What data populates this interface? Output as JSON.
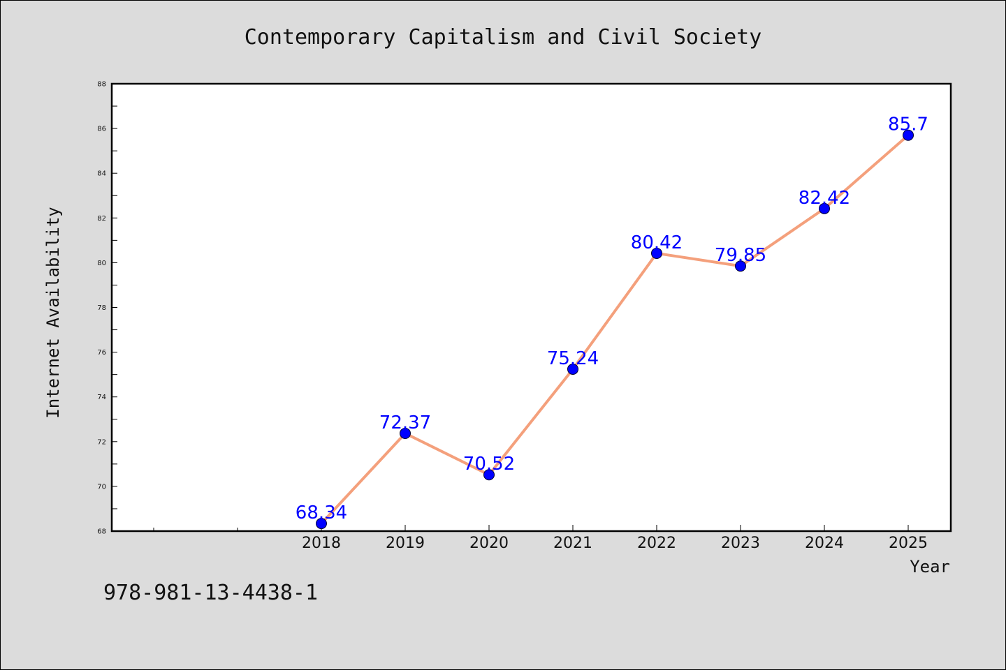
{
  "chart_data": {
    "type": "line",
    "title": "Contemporary Capitalism and Civil Society",
    "xlabel": "Year",
    "ylabel": "Internet Availability",
    "categories": [
      "2018",
      "2019",
      "2020",
      "2021",
      "2022",
      "2023",
      "2024",
      "2025"
    ],
    "series": [
      {
        "values": [
          68.34,
          72.37,
          70.52,
          75.24,
          80.42,
          79.85,
          82.42,
          85.7
        ],
        "data_labels": [
          "68.34",
          "72.37",
          "70.52",
          "75.24",
          "80.42",
          "79.85",
          "82.42",
          "85.7"
        ]
      }
    ],
    "ylim": [
      68,
      88
    ],
    "yticks": [
      "68",
      "70",
      "72",
      "74",
      "76",
      "78",
      "80",
      "82",
      "84",
      "86",
      "88"
    ],
    "grid": false,
    "legend": "none",
    "colors": {
      "line": "#f4a07c",
      "marker": "#0000ff",
      "data_label": "#0000ff",
      "plot_background": "#ffffff",
      "page_background": "#dcdcdc"
    }
  },
  "footer": {
    "isbn": "978-981-13-4438-1"
  }
}
